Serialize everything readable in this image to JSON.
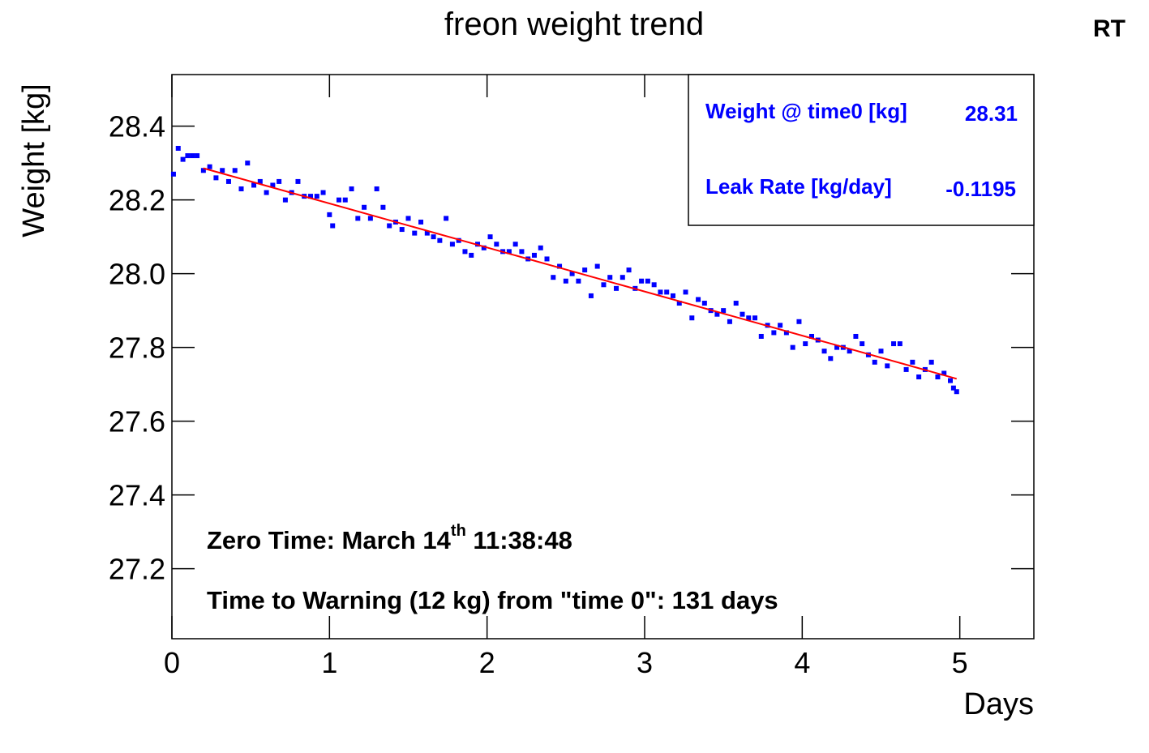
{
  "chart_data": {
    "type": "scatter",
    "title": "freon weight trend",
    "corner_label": "RT",
    "x_label": "Days",
    "y_label": "Weight [kg]",
    "xlim": [
      0,
      5.47
    ],
    "ylim": [
      27.01,
      28.54
    ],
    "xticks": [
      0,
      1,
      2,
      3,
      4,
      5
    ],
    "yticks": [
      27.2,
      27.4,
      27.6,
      27.8,
      {
        "value": 28,
        "label": "28.0"
      },
      28.2,
      28.4
    ],
    "series": [
      {
        "color": "#0000ff",
        "x": [
          0.01,
          0.04,
          0.07,
          0.1,
          0.13,
          0.16,
          0.2,
          0.24,
          0.28,
          0.32,
          0.36,
          0.4,
          0.44,
          0.48,
          0.52,
          0.56,
          0.6,
          0.64,
          0.68,
          0.72,
          0.76,
          0.8,
          0.84,
          0.88,
          0.92,
          0.96,
          1.0,
          1.02,
          1.06,
          1.1,
          1.14,
          1.18,
          1.22,
          1.26,
          1.3,
          1.34,
          1.38,
          1.42,
          1.46,
          1.5,
          1.54,
          1.58,
          1.62,
          1.66,
          1.7,
          1.74,
          1.78,
          1.82,
          1.86,
          1.9,
          1.94,
          1.98,
          2.02,
          2.06,
          2.1,
          2.14,
          2.18,
          2.22,
          2.26,
          2.3,
          2.34,
          2.38,
          2.42,
          2.46,
          2.5,
          2.54,
          2.58,
          2.62,
          2.66,
          2.7,
          2.74,
          2.78,
          2.82,
          2.86,
          2.9,
          2.94,
          2.98,
          3.02,
          3.06,
          3.1,
          3.14,
          3.18,
          3.22,
          3.26,
          3.3,
          3.34,
          3.38,
          3.42,
          3.46,
          3.5,
          3.54,
          3.58,
          3.62,
          3.66,
          3.7,
          3.74,
          3.78,
          3.82,
          3.86,
          3.9,
          3.94,
          3.98,
          4.02,
          4.06,
          4.1,
          4.14,
          4.18,
          4.22,
          4.26,
          4.3,
          4.34,
          4.38,
          4.42,
          4.46,
          4.5,
          4.54,
          4.58,
          4.62,
          4.66,
          4.7,
          4.74,
          4.78,
          4.82,
          4.86,
          4.9,
          4.94,
          4.96,
          4.98
        ],
        "values": [
          28.27,
          28.34,
          28.31,
          28.32,
          28.32,
          28.32,
          28.28,
          28.29,
          28.26,
          28.28,
          28.25,
          28.28,
          28.23,
          28.3,
          28.24,
          28.25,
          28.22,
          28.24,
          28.25,
          28.2,
          28.22,
          28.25,
          28.21,
          28.21,
          28.21,
          28.22,
          28.16,
          28.13,
          28.2,
          28.2,
          28.23,
          28.15,
          28.18,
          28.15,
          28.23,
          28.18,
          28.13,
          28.14,
          28.12,
          28.15,
          28.11,
          28.14,
          28.11,
          28.1,
          28.09,
          28.15,
          28.08,
          28.09,
          28.06,
          28.05,
          28.08,
          28.07,
          28.1,
          28.08,
          28.06,
          28.06,
          28.08,
          28.06,
          28.04,
          28.05,
          28.07,
          28.04,
          27.99,
          28.02,
          27.98,
          28.0,
          27.98,
          28.01,
          27.94,
          28.02,
          27.97,
          27.99,
          27.96,
          27.99,
          28.01,
          27.96,
          27.98,
          27.98,
          27.97,
          27.95,
          27.95,
          27.94,
          27.92,
          27.95,
          27.88,
          27.93,
          27.92,
          27.9,
          27.89,
          27.9,
          27.87,
          27.92,
          27.89,
          27.88,
          27.88,
          27.83,
          27.86,
          27.84,
          27.86,
          27.84,
          27.8,
          27.87,
          27.81,
          27.83,
          27.82,
          27.79,
          27.77,
          27.8,
          27.8,
          27.79,
          27.83,
          27.81,
          27.78,
          27.76,
          27.79,
          27.75,
          27.81,
          27.81,
          27.74,
          27.76,
          27.72,
          27.74,
          27.76,
          27.72,
          27.73,
          27.71,
          27.69,
          27.68
        ]
      }
    ],
    "fit": {
      "color": "#ff0000",
      "x": [
        0.2,
        4.98
      ],
      "values": [
        28.286,
        27.715
      ]
    },
    "stats": [
      {
        "label": "Weight @ time0 [kg]",
        "value": 28.31
      },
      {
        "label": "Leak Rate [kg/day]",
        "value": -0.1195
      }
    ],
    "annotations": [
      {
        "text": "Zero Time: March 14",
        "sup": "th",
        "after": " 11:38:48"
      },
      {
        "text": "Time to Warning (12 kg) from \"time 0\": 131 days"
      }
    ]
  }
}
